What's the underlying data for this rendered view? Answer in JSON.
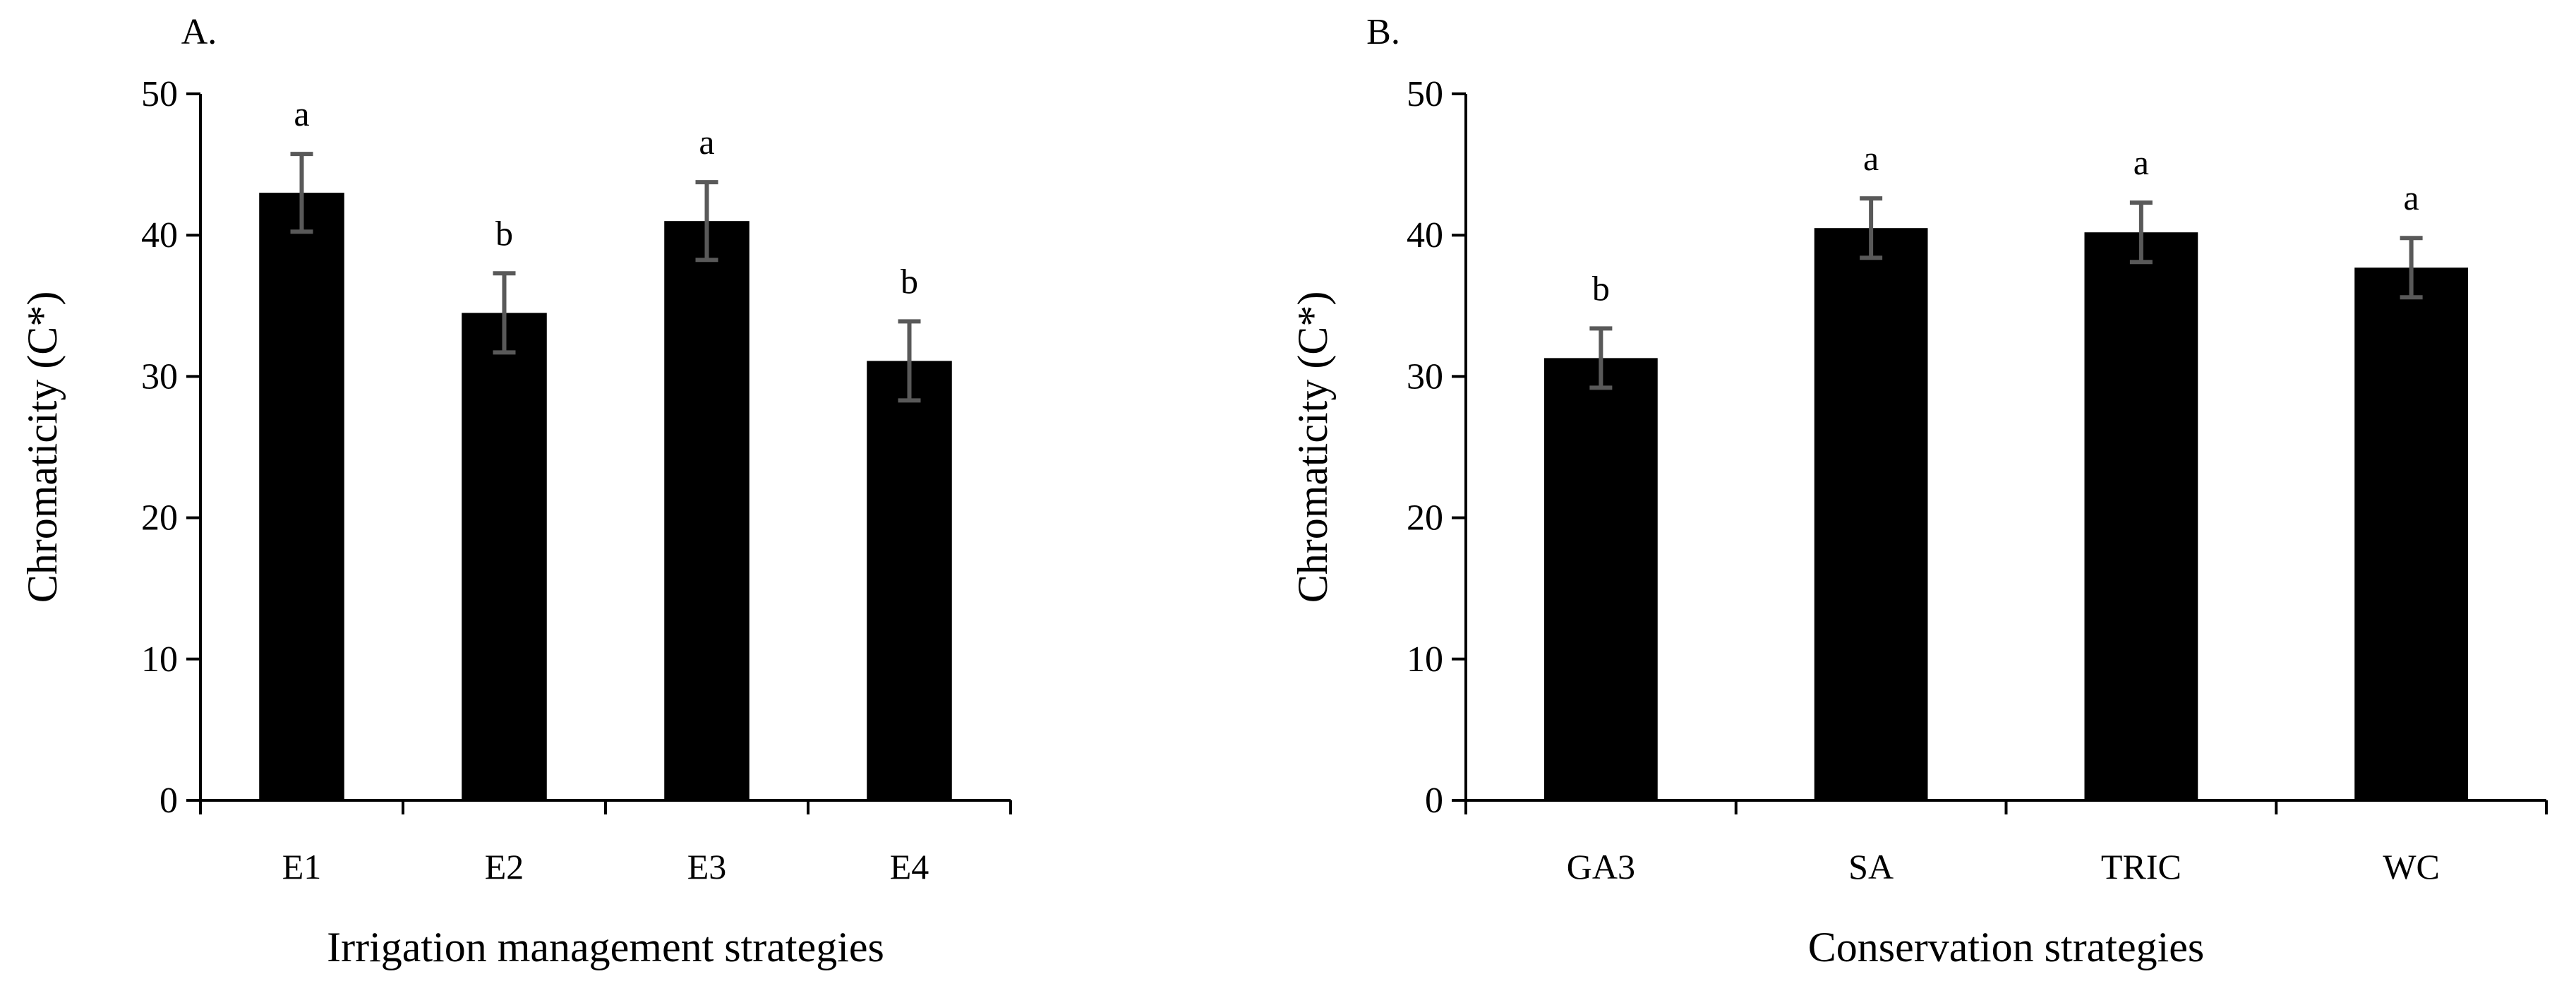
{
  "chart_data": [
    {
      "type": "bar",
      "panel_label": "A.",
      "title": "",
      "xlabel": "Irrigation management strategies",
      "ylabel": "Chromaticity (C*)",
      "ylim": [
        0,
        50
      ],
      "yticks": [
        0,
        10,
        20,
        30,
        40,
        50
      ],
      "categories": [
        "E1",
        "E2",
        "E3",
        "E4"
      ],
      "values": [
        43.0,
        34.5,
        41.0,
        31.1
      ],
      "errors": [
        2.75,
        2.8,
        2.75,
        2.8
      ],
      "significance": [
        "a",
        "b",
        "a",
        "b"
      ],
      "bar_color": "#000000",
      "error_color": "#595959",
      "grid": false
    },
    {
      "type": "bar",
      "panel_label": "B.",
      "title": "",
      "xlabel": "Conservation strategies",
      "ylabel": "Chromaticity (C*)",
      "ylim": [
        0,
        50
      ],
      "yticks": [
        0,
        10,
        20,
        30,
        40,
        50
      ],
      "categories": [
        "GA3",
        "SA",
        "TRIC",
        "WC"
      ],
      "values": [
        31.3,
        40.5,
        40.2,
        37.7
      ],
      "errors": [
        2.1,
        2.1,
        2.1,
        2.1
      ],
      "significance": [
        "b",
        "a",
        "a",
        "a"
      ],
      "bar_color": "#000000",
      "error_color": "#595959",
      "grid": false
    }
  ]
}
